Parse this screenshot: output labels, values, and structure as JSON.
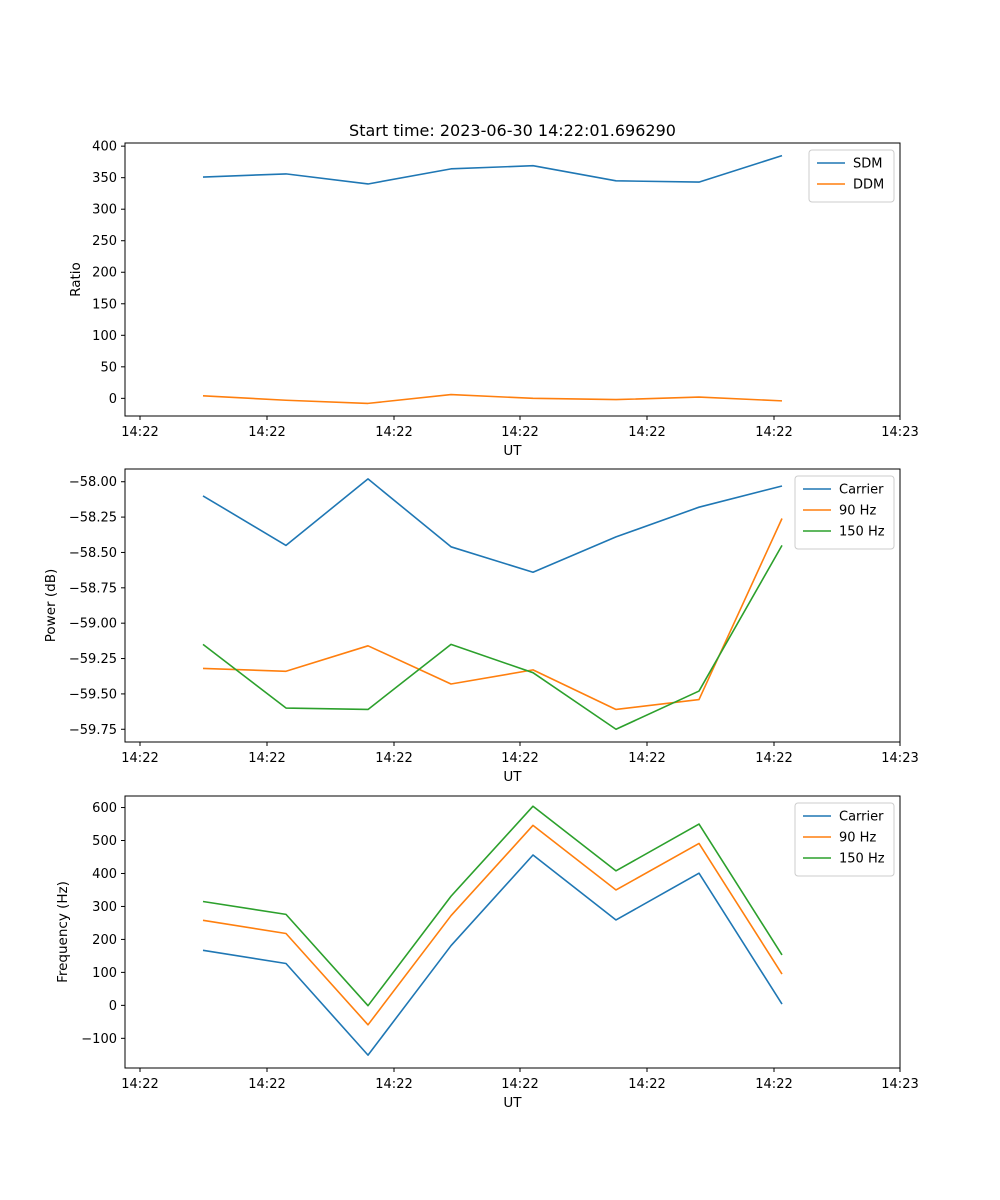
{
  "colors": {
    "blue": "#1f77b4",
    "orange": "#ff7f0e",
    "green": "#2ca02c"
  },
  "chart_data": [
    {
      "type": "line",
      "title": "Start time: 2023-06-30 14:22:01.696290",
      "xlabel": "UT",
      "ylabel": "Ratio",
      "xticks": [
        "14:22",
        "14:22",
        "14:22",
        "14:22",
        "14:22",
        "14:22",
        "14:22"
      ],
      "xticks_end": "14:23",
      "yticks": [
        "0",
        "50",
        "100",
        "150",
        "200",
        "250",
        "300",
        "350",
        "400"
      ],
      "ylim": [
        -28,
        405
      ],
      "ytick_values": [
        0,
        50,
        100,
        150,
        200,
        250,
        300,
        350,
        400
      ],
      "legend": "top-right",
      "grid": false,
      "series": [
        {
          "name": "SDM",
          "color": "#1f77b4",
          "values": [
            351,
            356,
            340,
            364,
            369,
            345,
            343,
            385
          ]
        },
        {
          "name": "DDM",
          "color": "#ff7f0e",
          "values": [
            4,
            -3,
            -8,
            6,
            0,
            -2,
            2,
            -4
          ]
        }
      ]
    },
    {
      "type": "line",
      "title": "",
      "xlabel": "UT",
      "ylabel": "Power (dB)",
      "xticks": [
        "14:22",
        "14:22",
        "14:22",
        "14:22",
        "14:22",
        "14:22",
        "14:22"
      ],
      "xticks_end": "14:23",
      "yticks": [
        "−59.75",
        "−59.50",
        "−59.25",
        "−59.00",
        "−58.75",
        "−58.50",
        "−58.25",
        "−58.00"
      ],
      "ytick_values": [
        -59.75,
        -59.5,
        -59.25,
        -59.0,
        -58.75,
        -58.5,
        -58.25,
        -58.0
      ],
      "ylim": [
        -59.84,
        -57.91
      ],
      "legend": "top-right",
      "grid": false,
      "series": [
        {
          "name": "Carrier",
          "color": "#1f77b4",
          "values": [
            -58.1,
            -58.45,
            -57.98,
            -58.46,
            -58.64,
            -58.39,
            -58.18,
            -58.03
          ]
        },
        {
          "name": "90 Hz",
          "color": "#ff7f0e",
          "values": [
            -59.32,
            -59.34,
            -59.16,
            -59.43,
            -59.33,
            -59.61,
            -59.54,
            -58.26
          ]
        },
        {
          "name": "150 Hz",
          "color": "#2ca02c",
          "values": [
            -59.15,
            -59.6,
            -59.61,
            -59.15,
            -59.35,
            -59.75,
            -59.48,
            -58.45
          ]
        }
      ]
    },
    {
      "type": "line",
      "title": "",
      "xlabel": "UT",
      "ylabel": "Frequency (Hz)",
      "xticks": [
        "14:22",
        "14:22",
        "14:22",
        "14:22",
        "14:22",
        "14:22",
        "14:22"
      ],
      "xticks_end": "14:23",
      "yticks": [
        "−100",
        "0",
        "100",
        "200",
        "300",
        "400",
        "500",
        "600"
      ],
      "ytick_values": [
        -100,
        0,
        100,
        200,
        300,
        400,
        500,
        600
      ],
      "ylim": [
        -190,
        635
      ],
      "legend": "top-right",
      "grid": false,
      "series": [
        {
          "name": "Carrier",
          "color": "#1f77b4",
          "values": [
            167,
            127,
            -151,
            181,
            456,
            259,
            401,
            4
          ]
        },
        {
          "name": "90 Hz",
          "color": "#ff7f0e",
          "values": [
            258,
            218,
            -59,
            272,
            546,
            350,
            491,
            95
          ]
        },
        {
          "name": "150 Hz",
          "color": "#2ca02c",
          "values": [
            315,
            276,
            -1,
            331,
            604,
            408,
            550,
            153
          ]
        }
      ]
    }
  ]
}
